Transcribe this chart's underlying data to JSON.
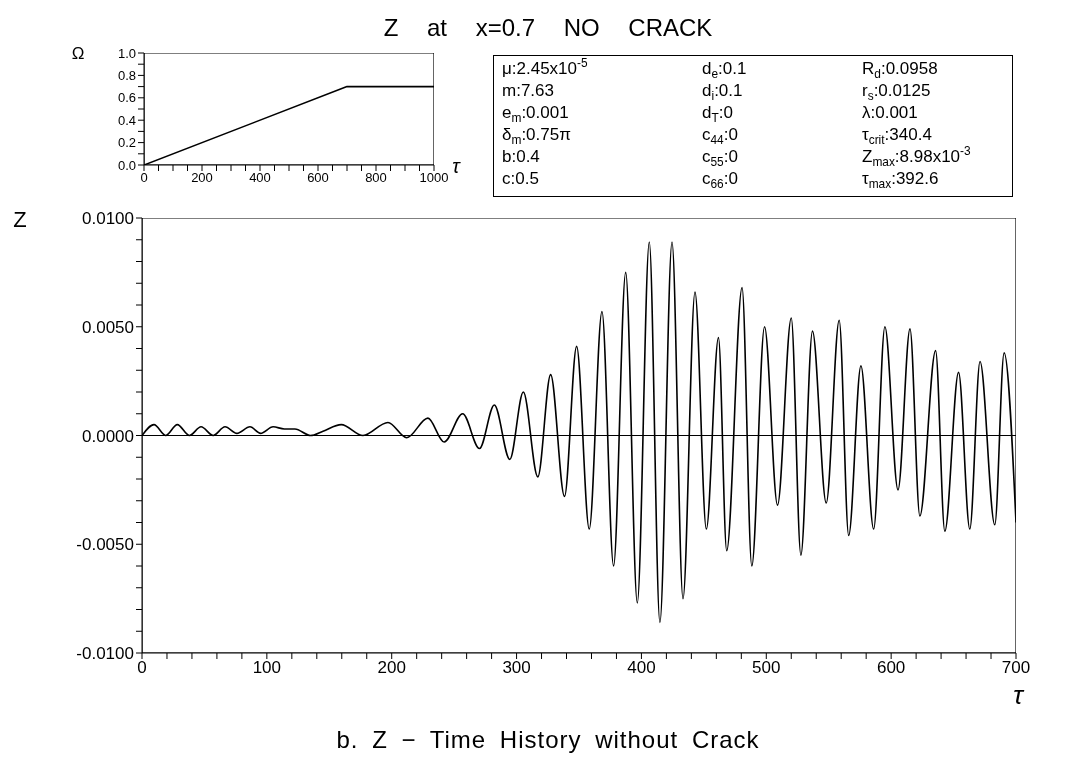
{
  "chart_data": [
    {
      "type": "line",
      "title": "Z at x=0.7 NO CRACK",
      "xlabel": "τ",
      "ylabel": "Ω",
      "x": [
        0,
        700,
        1000
      ],
      "series": [
        {
          "color": "#000000",
          "values": [
            0,
            0.7,
            0.7
          ]
        }
      ],
      "xlim": [
        0,
        1000
      ],
      "ylim": [
        0,
        1
      ],
      "xticks": [
        0,
        {
          "value": 50,
          "label": null
        },
        {
          "value": 100,
          "label": null
        },
        {
          "value": 150,
          "label": null
        },
        200,
        {
          "value": 250,
          "label": null
        },
        {
          "value": 300,
          "label": null
        },
        {
          "value": 350,
          "label": null
        },
        400,
        {
          "value": 450,
          "label": null
        },
        {
          "value": 500,
          "label": null
        },
        {
          "value": 550,
          "label": null
        },
        600,
        {
          "value": 650,
          "label": null
        },
        {
          "value": 700,
          "label": null
        },
        {
          "value": 750,
          "label": null
        },
        800,
        {
          "value": 850,
          "label": null
        },
        {
          "value": 900,
          "label": null
        },
        {
          "value": 950,
          "label": null
        },
        1000
      ],
      "yticks": [
        {
          "value": 0,
          "label": "0.0"
        },
        {
          "value": 0.1,
          "label": null
        },
        {
          "value": 0.2,
          "label": "0.2"
        },
        {
          "value": 0.3,
          "label": null
        },
        {
          "value": 0.4,
          "label": "0.4"
        },
        {
          "value": 0.5,
          "label": null
        },
        {
          "value": 0.6,
          "label": "0.6"
        },
        {
          "value": 0.7,
          "label": null
        },
        {
          "value": 0.8,
          "label": "0.8"
        },
        {
          "value": 0.9,
          "label": null
        },
        {
          "value": 1,
          "label": "1.0"
        }
      ]
    },
    {
      "type": "other",
      "annotations": [
        "μ:2.45x10$^{-5}$",
        "m:7.63",
        "e$_{m}$:0.001",
        "δ$_{m}$:0.75π",
        "b:0.4",
        "c:0.5",
        "d$_{e}$:0.1",
        "d$_{i}$:0.1",
        "d$_{T}$:0",
        "c$_{44}$:0",
        "c$_{55}$:0",
        "c$_{66}$:0",
        "R$_{d}$:0.0958",
        "r$_{s}$:0.0125",
        "λ:0.001",
        "τ$_{crit}$:340.4",
        "Z$_{max}$:8.98x10$^{-3}$",
        "τ$_{max}$:392.6"
      ]
    },
    {
      "type": "line",
      "xlabel": "τ",
      "ylabel": "Z",
      "annotations": [
        "b. Z − Time History without Crack"
      ],
      "x": [
        0,
        9.6,
        19,
        28.3,
        38,
        47.3,
        57,
        66.5,
        76,
        86.5,
        95,
        105,
        114,
        122.5,
        135,
        145,
        159.6,
        177,
        197,
        212,
        229,
        242,
        256.8,
        270.3,
        282.2,
        294.6,
        305.4,
        317,
        327.3,
        338.4,
        348.1,
        358.2,
        368.4,
        377.7,
        387.4,
        396.7,
        406.3,
        414.8,
        424.5,
        433.3,
        442.9,
        452,
        461.7,
        468.3,
        480.6,
        488.4,
        498.6,
        509,
        520,
        527.7,
        537,
        548,
        558.4,
        566,
        575.8,
        586,
        595,
        605.5,
        615.1,
        623,
        635.6,
        643,
        654,
        663,
        671.2,
        683,
        690.5,
        700
      ],
      "series": [
        {
          "color": "#000000",
          "values": [
            0,
            0.0005,
            0,
            0.0005,
            0,
            0.0004,
            0,
            0.0004,
            0.0001,
            0.0004,
            0.0001,
            0.0004,
            0.0003,
            0.0003,
            0,
            0.0002,
            0.0005,
            0,
            0.0006,
            -0.0001,
            0.0008,
            -0.0003,
            0.001,
            -0.0006,
            0.0014,
            -0.0011,
            0.002,
            -0.0019,
            0.0028,
            -0.0028,
            0.0041,
            -0.0043,
            0.0057,
            -0.006,
            0.0075,
            -0.0077,
            0.0089,
            -0.0086,
            0.0089,
            -0.0075,
            0.0066,
            -0.0043,
            0.0045,
            -0.0053,
            0.0068,
            -0.006,
            0.005,
            -0.0032,
            0.0054,
            -0.0055,
            0.0048,
            -0.0031,
            0.0053,
            -0.0046,
            0.0032,
            -0.0043,
            0.005,
            -0.0025,
            0.0049,
            -0.0037,
            0.0039,
            -0.0044,
            0.0029,
            -0.0043,
            0.0034,
            -0.0041,
            0.0038,
            -0.004
          ]
        }
      ],
      "xlim": [
        0,
        700
      ],
      "ylim": [
        -0.01,
        0.01
      ],
      "xticks": [
        0,
        {
          "value": 20,
          "label": null
        },
        {
          "value": 40,
          "label": null
        },
        {
          "value": 60,
          "label": null
        },
        {
          "value": 80,
          "label": null
        },
        100,
        {
          "value": 120,
          "label": null
        },
        {
          "value": 140,
          "label": null
        },
        {
          "value": 160,
          "label": null
        },
        {
          "value": 180,
          "label": null
        },
        200,
        {
          "value": 220,
          "label": null
        },
        {
          "value": 240,
          "label": null
        },
        {
          "value": 260,
          "label": null
        },
        {
          "value": 280,
          "label": null
        },
        300,
        {
          "value": 320,
          "label": null
        },
        {
          "value": 340,
          "label": null
        },
        {
          "value": 360,
          "label": null
        },
        {
          "value": 380,
          "label": null
        },
        400,
        {
          "value": 420,
          "label": null
        },
        {
          "value": 440,
          "label": null
        },
        {
          "value": 460,
          "label": null
        },
        {
          "value": 480,
          "label": null
        },
        500,
        {
          "value": 520,
          "label": null
        },
        {
          "value": 540,
          "label": null
        },
        {
          "value": 560,
          "label": null
        },
        {
          "value": 580,
          "label": null
        },
        600,
        {
          "value": 620,
          "label": null
        },
        {
          "value": 640,
          "label": null
        },
        {
          "value": 660,
          "label": null
        },
        {
          "value": 680,
          "label": null
        },
        700
      ],
      "yticks": [
        {
          "value": -0.01,
          "label": "-0.0100"
        },
        {
          "value": -0.009,
          "label": null
        },
        {
          "value": -0.008,
          "label": null
        },
        {
          "value": -0.007,
          "label": null
        },
        {
          "value": -0.006,
          "label": null
        },
        {
          "value": -0.005,
          "label": "-0.0050"
        },
        {
          "value": -0.004,
          "label": null
        },
        {
          "value": -0.003,
          "label": null
        },
        {
          "value": -0.002,
          "label": null
        },
        {
          "value": -0.001,
          "label": null
        },
        {
          "value": 0,
          "label": "0.0000"
        },
        {
          "value": 0.001,
          "label": null
        },
        {
          "value": 0.002,
          "label": null
        },
        {
          "value": 0.003,
          "label": null
        },
        {
          "value": 0.004,
          "label": null
        },
        {
          "value": 0.005,
          "label": "0.0050"
        },
        {
          "value": 0.006,
          "label": null
        },
        {
          "value": 0.007,
          "label": null
        },
        {
          "value": 0.008,
          "label": null
        },
        {
          "value": 0.009,
          "label": null
        },
        {
          "value": 0.01,
          "label": "0.0100"
        }
      ],
      "ref_lines": [
        {
          "axis": "y",
          "value": 0
        }
      ]
    }
  ]
}
